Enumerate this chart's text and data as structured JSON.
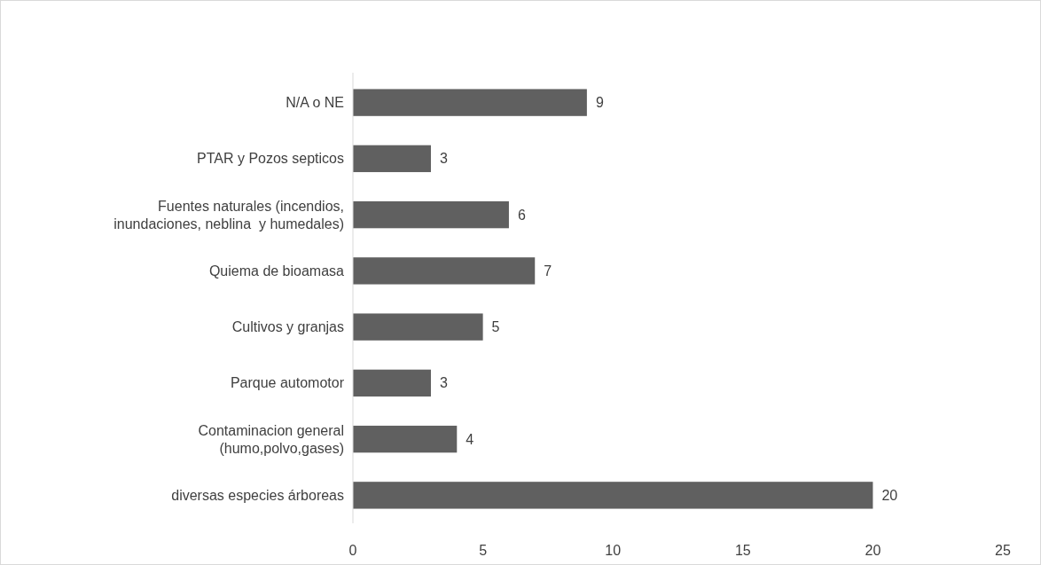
{
  "chart_data": {
    "type": "bar",
    "orientation": "horizontal",
    "categories": [
      "N/A o NE",
      "PTAR y Pozos septicos",
      "Fuentes naturales (incendios, inundaciones, neblina  y humedales)",
      "Quiema de bioamasa",
      "Cultivos y granjas",
      "Parque automotor",
      "Contaminacion general (humo,polvo,gases)",
      "diversas especies árboreas"
    ],
    "values": [
      9,
      3,
      6,
      7,
      5,
      3,
      4,
      20
    ],
    "color": "#606060",
    "xlim": [
      0,
      25
    ],
    "xticks": [
      0,
      5,
      10,
      15,
      20,
      25
    ],
    "data_labels": true
  }
}
